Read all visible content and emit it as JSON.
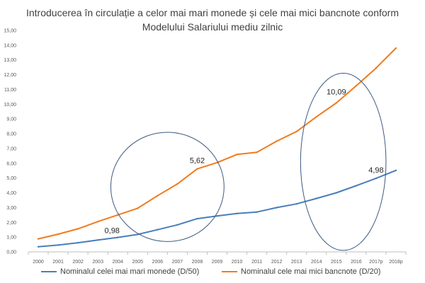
{
  "chart_data": {
    "type": "line",
    "title": "Introducerea în circulație a celor mai mari monede și cele mai mici bancnote conform",
    "subtitle": "Modelului Salariului mediu zilnic",
    "categories": [
      "2000",
      "2001",
      "2002",
      "2003",
      "2004",
      "2005",
      "2006",
      "2007",
      "2008",
      "2009",
      "2010",
      "2011",
      "2012",
      "2013",
      "2014",
      "2015",
      "2016",
      "2017p",
      "2018p"
    ],
    "series": [
      {
        "name": "Nominalul celei mai mari monede (D/50)",
        "color": "#4a7ebb",
        "values": [
          0.35,
          0.46,
          0.62,
          0.8,
          0.98,
          1.18,
          1.5,
          1.83,
          2.25,
          2.43,
          2.6,
          2.7,
          3.0,
          3.25,
          3.62,
          4.0,
          4.48,
          4.98,
          5.52
        ]
      },
      {
        "name": "Nominalul cele mai mici bancnote (D/20)",
        "color": "#f07b1e",
        "values": [
          0.88,
          1.2,
          1.56,
          2.05,
          2.5,
          2.95,
          3.8,
          4.6,
          5.62,
          6.05,
          6.6,
          6.75,
          7.5,
          8.15,
          9.15,
          10.09,
          11.25,
          12.45,
          13.8
        ]
      }
    ],
    "data_labels": [
      {
        "series": 0,
        "index": 4,
        "text": "0,98"
      },
      {
        "series": 1,
        "index": 8,
        "text": "5,62"
      },
      {
        "series": 1,
        "index": 15,
        "text": "10,09"
      },
      {
        "series": 0,
        "index": 17,
        "text": "4,98"
      }
    ],
    "y_ticks": [
      "0,00",
      "1,00",
      "2,00",
      "3,00",
      "4,00",
      "5,00",
      "6,00",
      "7,00",
      "8,00",
      "9,00",
      "10,00",
      "11,00",
      "12,00",
      "13,00",
      "14,00",
      "15,00"
    ],
    "ylim": [
      0,
      15
    ],
    "grid": false,
    "legend_position": "bottom",
    "annotations": [
      {
        "shape": "ellipse",
        "cx": 2006.5,
        "cy": 4.4,
        "rx": 2.85,
        "ry": 3.7,
        "color": "#3d5a80"
      },
      {
        "shape": "ellipse",
        "cx": 2015.35,
        "cy": 6.1,
        "rx": 2.15,
        "ry": 6.0,
        "color": "#3d5a80"
      }
    ]
  }
}
